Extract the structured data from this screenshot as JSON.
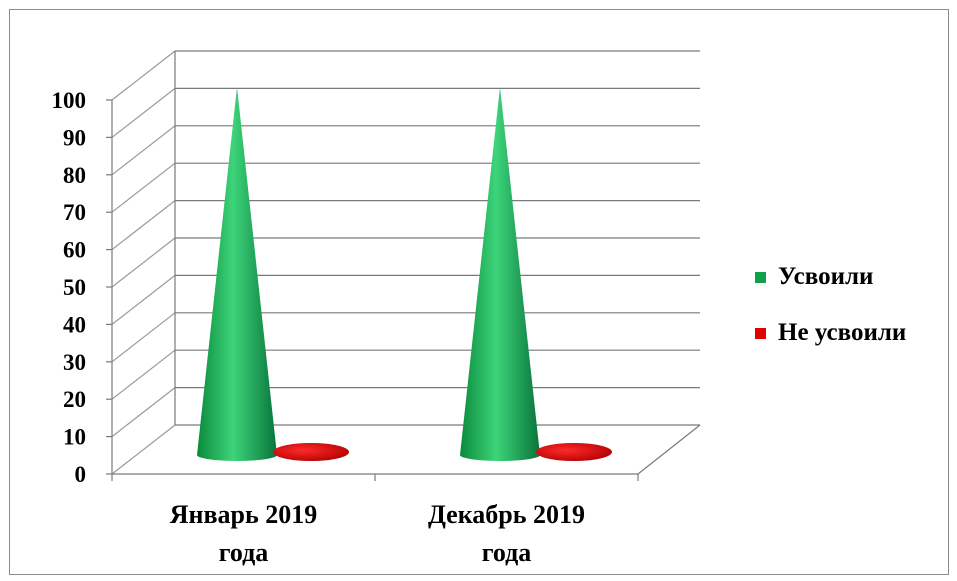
{
  "chart_data": {
    "type": "bar",
    "style": "3d-cone",
    "categories": [
      "Январь 2019 года",
      "Декабрь 2019 года"
    ],
    "category_lines": [
      [
        "Январь 2019",
        "года"
      ],
      [
        "Декабрь 2019",
        "года"
      ]
    ],
    "series": [
      {
        "name": "Усвоили",
        "values": [
          100,
          100
        ],
        "color": "#0fa14a"
      },
      {
        "name": "Не усвоили",
        "values": [
          0,
          0
        ],
        "color": "#e00000"
      }
    ],
    "ylim": [
      0,
      100
    ],
    "yticks": [
      "0",
      "10",
      "20",
      "30",
      "40",
      "50",
      "60",
      "70",
      "80",
      "90",
      "100"
    ],
    "grid": true,
    "legend": "right",
    "title": "",
    "xlabel": "",
    "ylabel": ""
  }
}
